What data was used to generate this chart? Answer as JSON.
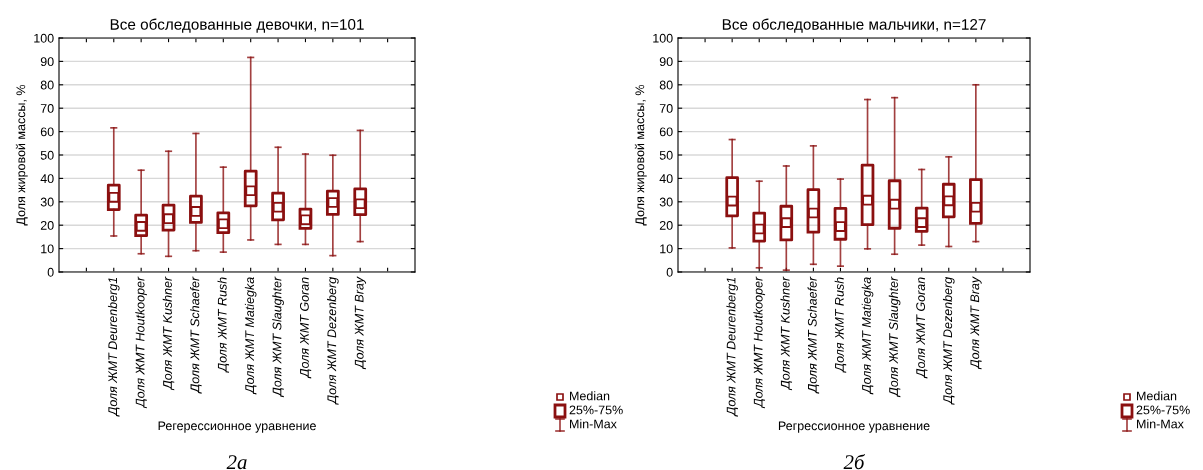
{
  "chart_data": [
    {
      "type": "box",
      "title": "Все обследованные девочки, n=101",
      "xlabel": "Регерессионное уравнение",
      "ylabel": "Доля жировой массы, %",
      "categories": [
        "Доля ЖМТ Deurenberg1",
        "Доля ЖМТ Houtkooper",
        "Доля ЖМТ Kushner",
        "Доля ЖМТ Schaefer",
        "Доля ЖМТ Rush",
        "Доля ЖМТ Matiegka",
        "Доля ЖМТ Slaughter",
        "Доля ЖМТ Goran",
        "Доля ЖМТ Dezenberg",
        "Доля ЖМТ Bray"
      ],
      "series": [
        {
          "color": "#8b1010",
          "boxes": [
            {
              "low": 15.4,
              "q1": 26.7,
              "median": 31.9,
              "q3": 37.1,
              "high": 61.6
            },
            {
              "low": 7.8,
              "q1": 15.5,
              "median": 19.5,
              "q3": 24.3,
              "high": 43.5
            },
            {
              "low": 6.7,
              "q1": 17.9,
              "median": 22.8,
              "q3": 28.6,
              "high": 51.6
            },
            {
              "low": 9.1,
              "q1": 21.2,
              "median": 25.9,
              "q3": 32.4,
              "high": 59.2
            },
            {
              "low": 8.5,
              "q1": 16.8,
              "median": 20.6,
              "q3": 25.3,
              "high": 44.8
            },
            {
              "low": 13.7,
              "q1": 28.3,
              "median": 34.7,
              "q3": 43.1,
              "high": 91.7
            },
            {
              "low": 11.8,
              "q1": 22.3,
              "median": 27.7,
              "q3": 33.7,
              "high": 53.3
            },
            {
              "low": 11.8,
              "q1": 18.6,
              "median": 22.3,
              "q3": 26.9,
              "high": 50.4
            },
            {
              "low": 7.0,
              "q1": 24.6,
              "median": 29.7,
              "q3": 34.6,
              "high": 49.9
            },
            {
              "low": 13.0,
              "q1": 24.5,
              "median": 29.2,
              "q3": 35.5,
              "high": 60.5
            }
          ]
        }
      ],
      "ylim": [
        0,
        100
      ],
      "yticks": [
        0,
        10,
        20,
        30,
        40,
        50,
        60,
        70,
        80,
        90,
        100
      ],
      "grid": "y",
      "marker": "square",
      "annotations": [
        "Median",
        "25%-75%",
        "Min-Max",
        "2а"
      ]
    },
    {
      "type": "box",
      "title": "Все обследованные мальчики, n=127",
      "xlabel": "Регрессионное уравнение",
      "ylabel": "Доля жировой массы, %",
      "categories": [
        "Доля ЖМТ Deurenberg1",
        "Доля ЖМТ Houtkooper",
        "Доля ЖМТ Kushner",
        "Доля ЖМТ Schaefer",
        "Доля ЖМТ Rush",
        "Доля ЖМТ Matiegka",
        "Доля ЖМТ Slaughter",
        "Доля ЖМТ Goran",
        "Доля ЖМТ Dezenberg",
        "Доля ЖМТ Bray"
      ],
      "series": [
        {
          "color": "#8b1010",
          "boxes": [
            {
              "low": 10.3,
              "q1": 24.0,
              "median": 30.3,
              "q3": 40.3,
              "high": 56.6
            },
            {
              "low": 1.8,
              "q1": 13.2,
              "median": 18.4,
              "q3": 25.2,
              "high": 38.8
            },
            {
              "low": 0.8,
              "q1": 13.7,
              "median": 21.1,
              "q3": 28.1,
              "high": 45.3
            },
            {
              "low": 3.3,
              "q1": 17.0,
              "median": 25.2,
              "q3": 35.2,
              "high": 53.9
            },
            {
              "low": 2.5,
              "q1": 14.0,
              "median": 19.4,
              "q3": 27.2,
              "high": 39.7
            },
            {
              "low": 9.9,
              "q1": 20.2,
              "median": 30.7,
              "q3": 45.7,
              "high": 73.7
            },
            {
              "low": 7.6,
              "q1": 18.7,
              "median": 29.0,
              "q3": 39.0,
              "high": 74.5
            },
            {
              "low": 11.5,
              "q1": 17.4,
              "median": 21.1,
              "q3": 27.3,
              "high": 43.8
            },
            {
              "low": 10.9,
              "q1": 23.6,
              "median": 30.4,
              "q3": 37.5,
              "high": 49.2
            },
            {
              "low": 13.0,
              "q1": 20.8,
              "median": 27.7,
              "q3": 39.5,
              "high": 80.0
            }
          ]
        }
      ],
      "ylim": [
        0,
        100
      ],
      "yticks": [
        0,
        10,
        20,
        30,
        40,
        50,
        60,
        70,
        80,
        90,
        100
      ],
      "grid": "y",
      "marker": "square",
      "annotations": [
        "Median",
        "25%-75%",
        "Min-Max",
        "2б"
      ]
    }
  ]
}
